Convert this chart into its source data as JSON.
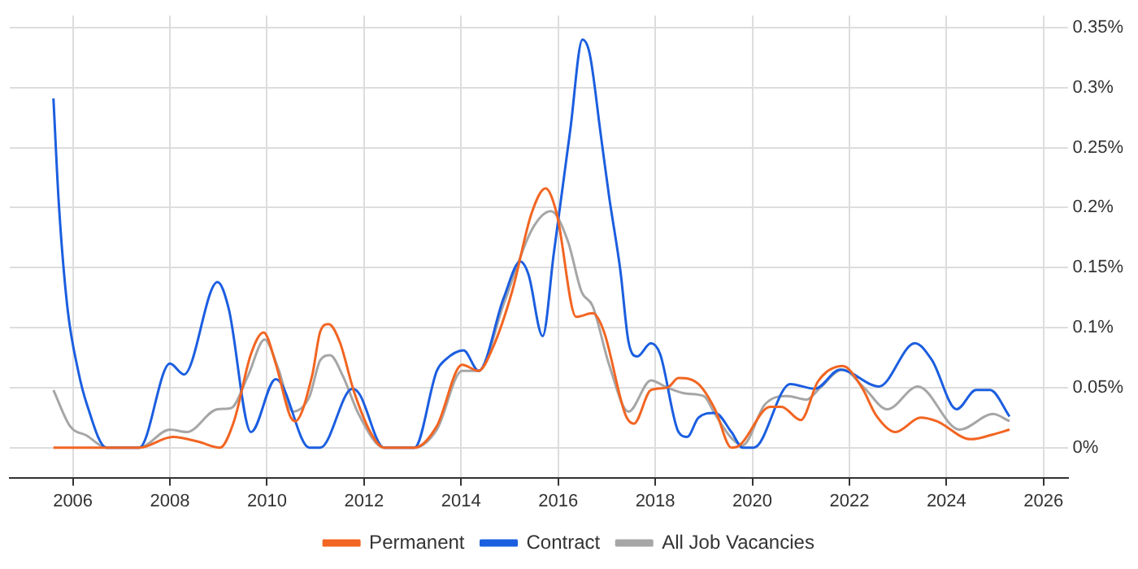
{
  "chart_data": {
    "type": "line",
    "xlim": [
      2004.7,
      2026.5
    ],
    "xticks": [
      2006,
      2008,
      2010,
      2012,
      2014,
      2016,
      2018,
      2020,
      2022,
      2024,
      2026
    ],
    "ylim": [
      -0.025,
      0.36
    ],
    "yticks": [
      {
        "value": 0,
        "label": "0%"
      },
      {
        "value": 0.05,
        "label": "0.05%"
      },
      {
        "value": 0.1,
        "label": "0.1%"
      },
      {
        "value": 0.15,
        "label": "0.15%"
      },
      {
        "value": 0.2,
        "label": "0.2%"
      },
      {
        "value": 0.25,
        "label": "0.25%"
      },
      {
        "value": 0.3,
        "label": "0.3%"
      },
      {
        "value": 0.35,
        "label": "0.35%"
      }
    ],
    "grid": true,
    "legend": "bottom",
    "marker": "none",
    "line_style": "solid",
    "series": [
      {
        "name": "Permanent",
        "color": "#f26522",
        "x": [
          2005.6,
          2007.37,
          2008.06,
          2008.58,
          2009.03,
          2009.32,
          2009.67,
          2009.93,
          2010.18,
          2010.47,
          2010.58,
          2010.93,
          2011.1,
          2011.27,
          2011.5,
          2011.79,
          2012.13,
          2012.41,
          2013.04,
          2013.5,
          2014.02,
          2014.36,
          2014.65,
          2015.05,
          2015.45,
          2015.74,
          2015.97,
          2016.37,
          2016.71,
          2016.94,
          2017.39,
          2017.56,
          2017.91,
          2018.25,
          2018.48,
          2018.89,
          2019.23,
          2019.57,
          2019.74,
          2020.37,
          2020.6,
          2021.0,
          2021.35,
          2021.86,
          2022.26,
          2022.55,
          2022.95,
          2023.47,
          2023.8,
          2024.5,
          2024.96,
          2025.3
        ],
        "values": [
          0,
          0,
          0.009,
          0.005,
          0,
          0.022,
          0.078,
          0.096,
          0.07,
          0.027,
          0.022,
          0.06,
          0.097,
          0.103,
          0.088,
          0.047,
          0.013,
          0,
          0,
          0.018,
          0.069,
          0.064,
          0.083,
          0.13,
          0.195,
          0.216,
          0.195,
          0.109,
          0.112,
          0.097,
          0.027,
          0.02,
          0.048,
          0.05,
          0.058,
          0.053,
          0.032,
          0,
          0.002,
          0.034,
          0.034,
          0.023,
          0.055,
          0.068,
          0.05,
          0.027,
          0.013,
          0.025,
          0.022,
          0.007,
          0.011,
          0.015
        ]
      },
      {
        "name": "Contract",
        "color": "#1b5ee0",
        "x": [
          2005.6,
          2005.71,
          2005.89,
          2006.11,
          2006.29,
          2006.69,
          2007.37,
          2008.0,
          2008.29,
          2008.98,
          2009.21,
          2009.67,
          2010.18,
          2010.3,
          2010.87,
          2011.1,
          2011.76,
          2011.9,
          2012.41,
          2013.04,
          2013.5,
          2013.67,
          2014.05,
          2014.36,
          2014.88,
          2015.22,
          2015.39,
          2015.68,
          2015.91,
          2016.25,
          2016.5,
          2016.65,
          2016.88,
          2017.05,
          2017.28,
          2017.45,
          2017.63,
          2017.91,
          2018.1,
          2018.48,
          2018.66,
          2018.89,
          2019.23,
          2019.57,
          2019.8,
          2020.03,
          2020.78,
          2021.29,
          2021.81,
          2022.61,
          2023.35,
          2023.7,
          2024.21,
          2024.61,
          2024.9,
          2025.3
        ],
        "values": [
          0.291,
          0.204,
          0.116,
          0.064,
          0.036,
          0,
          0,
          0.07,
          0.061,
          0.138,
          0.116,
          0.013,
          0.057,
          0.053,
          0,
          0,
          0.049,
          0.045,
          0,
          0,
          0.064,
          0.073,
          0.081,
          0.064,
          0.125,
          0.155,
          0.144,
          0.093,
          0.162,
          0.265,
          0.34,
          0.328,
          0.26,
          0.209,
          0.148,
          0.088,
          0.076,
          0.087,
          0.078,
          0.013,
          0.009,
          0.025,
          0.029,
          0.013,
          0,
          0,
          0.053,
          0.049,
          0.065,
          0.051,
          0.087,
          0.073,
          0.032,
          0.048,
          0.048,
          0.026
        ]
      },
      {
        "name": "All Job Vacancies",
        "color": "#a6a6a6",
        "x": [
          2005.6,
          2005.94,
          2006.29,
          2006.69,
          2007.37,
          2008.0,
          2008.35,
          2008.98,
          2009.26,
          2009.61,
          2009.95,
          2010.24,
          2010.53,
          2010.87,
          2011.1,
          2011.3,
          2011.56,
          2011.9,
          2012.41,
          2013.04,
          2013.5,
          2014.02,
          2014.36,
          2014.88,
          2015.45,
          2015.85,
          2016.2,
          2016.48,
          2016.71,
          2017.05,
          2017.45,
          2017.91,
          2018.25,
          2018.65,
          2019.0,
          2019.23,
          2019.57,
          2019.8,
          2020.26,
          2020.72,
          2021.12,
          2021.4,
          2021.86,
          2022.3,
          2022.78,
          2023.41,
          2024.27,
          2024.96,
          2025.3
        ],
        "values": [
          0.048,
          0.018,
          0.01,
          0,
          0,
          0.015,
          0.013,
          0.032,
          0.033,
          0.06,
          0.09,
          0.065,
          0.03,
          0.042,
          0.073,
          0.077,
          0.06,
          0.027,
          0,
          0,
          0.015,
          0.064,
          0.064,
          0.12,
          0.181,
          0.197,
          0.172,
          0.13,
          0.118,
          0.069,
          0.03,
          0.056,
          0.05,
          0.045,
          0.043,
          0.028,
          0.008,
          0.002,
          0.036,
          0.043,
          0.04,
          0.05,
          0.065,
          0.05,
          0.032,
          0.051,
          0.015,
          0.028,
          0.022
        ]
      }
    ]
  }
}
